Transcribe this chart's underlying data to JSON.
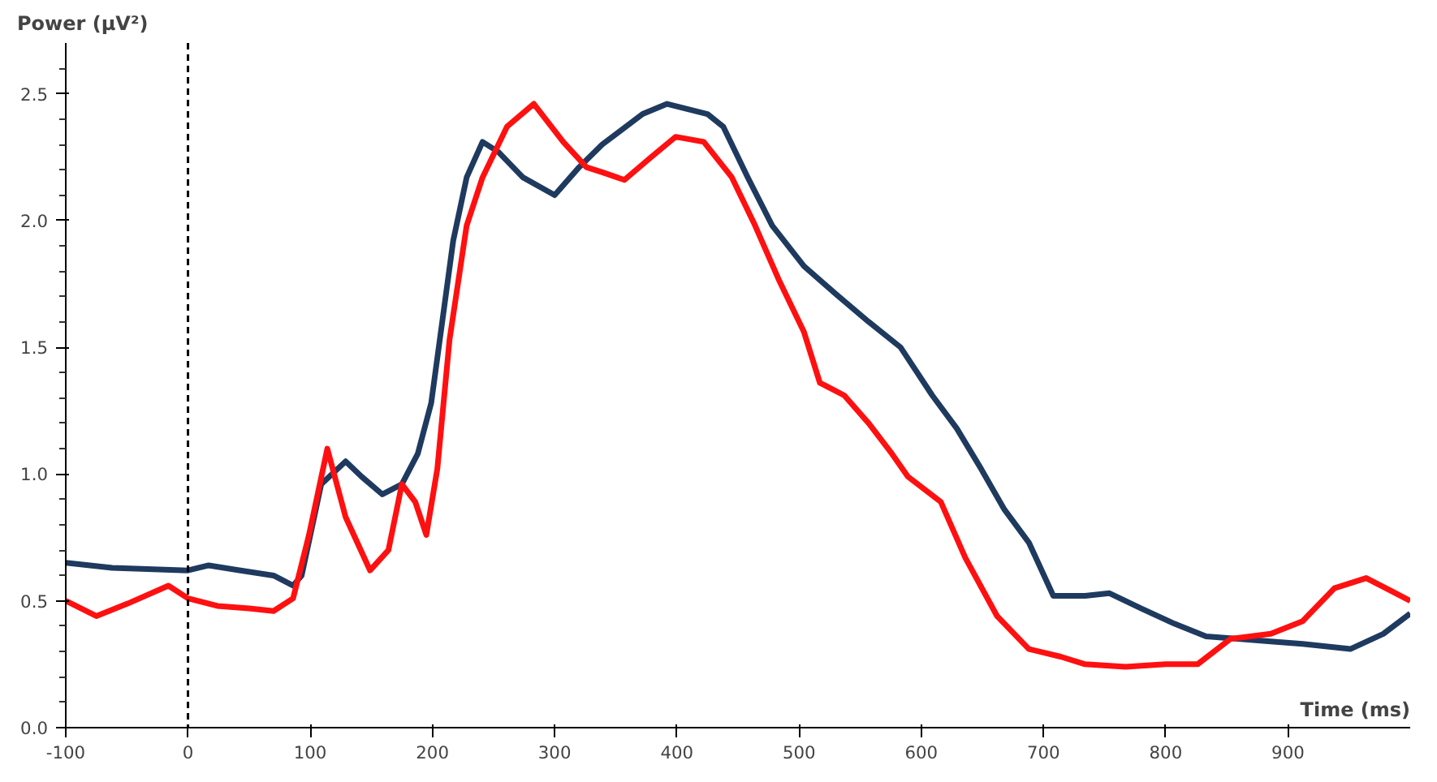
{
  "chart_data": {
    "type": "line",
    "ylabel": "Power (µV²)",
    "xlabel": "Time (ms)",
    "xlim": [
      -100,
      1000
    ],
    "xticks": [
      -100,
      0,
      100,
      200,
      300,
      400,
      500,
      600,
      700,
      800,
      900
    ],
    "ylim": [
      0,
      2.7
    ],
    "yticks": [
      {
        "value": 0,
        "label": "0.0"
      },
      {
        "value": 0.1,
        "label": null
      },
      {
        "value": 0.2,
        "label": null
      },
      {
        "value": 0.3,
        "label": null
      },
      {
        "value": 0.4,
        "label": null
      },
      {
        "value": 0.5,
        "label": "0.5"
      },
      {
        "value": 0.6,
        "label": null
      },
      {
        "value": 0.7,
        "label": null
      },
      {
        "value": 0.8,
        "label": null
      },
      {
        "value": 0.9,
        "label": null
      },
      {
        "value": 1.0,
        "label": "1.0"
      },
      {
        "value": 1.1,
        "label": null
      },
      {
        "value": 1.2,
        "label": null
      },
      {
        "value": 1.3,
        "label": null
      },
      {
        "value": 1.4,
        "label": null
      },
      {
        "value": 1.5,
        "label": "1.5"
      },
      {
        "value": 1.6,
        "label": null
      },
      {
        "value": 1.7,
        "label": null
      },
      {
        "value": 1.8,
        "label": null
      },
      {
        "value": 1.9,
        "label": null
      },
      {
        "value": 2.0,
        "label": "2.0"
      },
      {
        "value": 2.1,
        "label": null
      },
      {
        "value": 2.2,
        "label": null
      },
      {
        "value": 2.3,
        "label": null
      },
      {
        "value": 2.4,
        "label": null
      },
      {
        "value": 2.5,
        "label": "2.5"
      },
      {
        "value": 2.6,
        "label": null
      }
    ],
    "line_style": "solid",
    "marker": "none",
    "ref_lines": [
      {
        "axis": "x",
        "value": 0,
        "color": "#000000",
        "line_style": "dashed"
      }
    ],
    "series": [
      {
        "color": "#1f3a5f",
        "x": [
          -100,
          -62,
          0,
          17,
          43,
          70,
          86,
          93,
          109,
          129,
          142,
          159,
          175,
          188,
          199,
          208,
          217,
          228,
          241,
          254,
          274,
          300,
          320,
          339,
          372,
          392,
          425,
          438,
          458,
          478,
          504,
          530,
          557,
          583,
          609,
          629,
          649,
          668,
          688,
          708,
          734,
          754,
          780,
          807,
          833,
          859,
          886,
          912,
          951,
          978,
          1000
        ],
        "values": [
          0.65,
          0.63,
          0.62,
          0.64,
          0.62,
          0.6,
          0.56,
          0.6,
          0.96,
          1.05,
          0.99,
          0.92,
          0.96,
          1.08,
          1.28,
          1.6,
          1.92,
          2.17,
          2.31,
          2.27,
          2.17,
          2.1,
          2.21,
          2.3,
          2.42,
          2.46,
          2.42,
          2.37,
          2.17,
          1.98,
          1.82,
          1.71,
          1.6,
          1.5,
          1.31,
          1.18,
          1.02,
          0.86,
          0.73,
          0.52,
          0.52,
          0.53,
          0.47,
          0.41,
          0.36,
          0.35,
          0.34,
          0.33,
          0.31,
          0.37,
          0.45
        ]
      },
      {
        "color": "#ff1010",
        "x": [
          -100,
          -75,
          -49,
          -16,
          0,
          24,
          50,
          70,
          86,
          99,
          114,
          129,
          149,
          164,
          175,
          186,
          195,
          204,
          214,
          228,
          241,
          261,
          283,
          307,
          326,
          339,
          357,
          379,
          399,
          422,
          445,
          464,
          484,
          504,
          517,
          537,
          557,
          576,
          589,
          616,
          636,
          662,
          688,
          714,
          734,
          767,
          800,
          826,
          853,
          886,
          912,
          938,
          964,
          984,
          1000
        ],
        "values": [
          0.5,
          0.44,
          0.49,
          0.56,
          0.51,
          0.48,
          0.47,
          0.46,
          0.51,
          0.76,
          1.1,
          0.83,
          0.62,
          0.7,
          0.96,
          0.89,
          0.76,
          1.02,
          1.53,
          1.98,
          2.17,
          2.37,
          2.46,
          2.31,
          2.21,
          2.19,
          2.16,
          2.25,
          2.33,
          2.31,
          2.17,
          1.98,
          1.76,
          1.56,
          1.36,
          1.31,
          1.2,
          1.08,
          0.99,
          0.89,
          0.67,
          0.44,
          0.31,
          0.28,
          0.25,
          0.24,
          0.25,
          0.25,
          0.35,
          0.37,
          0.42,
          0.55,
          0.59,
          0.54,
          0.5
        ]
      }
    ]
  }
}
